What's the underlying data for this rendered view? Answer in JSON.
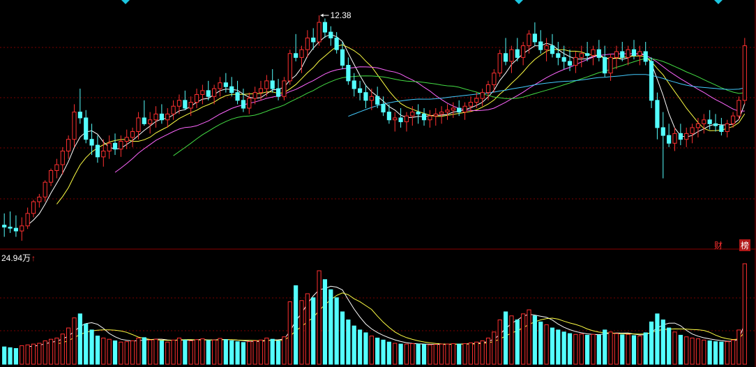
{
  "chart_data": {
    "type": "candlestick",
    "price_panel": {
      "high_marker_label": "12.38",
      "ma_colors": [
        "#ffffff",
        "#ffff44",
        "#ff66ff",
        "#44dd44",
        "#44ccff"
      ],
      "grid": true
    },
    "volume_panel": {
      "max_label": "24.94万",
      "arrow": "↑",
      "ma_colors": [
        "#ffffff",
        "#ffff44"
      ],
      "grid": true
    },
    "tags": {
      "cai": "财",
      "bang": "榜"
    },
    "colors": {
      "up": "#ff3030",
      "down": "#54ffff",
      "grid": "#7a0000",
      "separator": "#8a0000",
      "marker": "#1cc6e0"
    },
    "candles_ohlcv": [
      [
        7.0,
        7.3,
        6.7,
        6.95,
        4.3
      ],
      [
        6.95,
        7.35,
        6.8,
        6.92,
        4.1
      ],
      [
        6.92,
        7.25,
        6.7,
        6.85,
        3.9
      ],
      [
        6.85,
        7.2,
        6.6,
        6.98,
        4.6
      ],
      [
        6.98,
        7.45,
        6.9,
        7.3,
        4.8
      ],
      [
        7.3,
        7.65,
        7.2,
        7.6,
        5.0
      ],
      [
        7.6,
        7.8,
        7.45,
        7.72,
        5.2
      ],
      [
        7.72,
        8.15,
        7.6,
        8.1,
        5.8
      ],
      [
        8.1,
        8.45,
        8.0,
        8.4,
        6.2
      ],
      [
        8.4,
        8.7,
        8.2,
        8.55,
        6.5
      ],
      [
        8.55,
        9.0,
        8.3,
        8.9,
        7.5
      ],
      [
        8.9,
        9.3,
        8.7,
        9.2,
        9.0
      ],
      [
        9.2,
        10.1,
        9.0,
        9.9,
        11.5
      ],
      [
        9.9,
        10.5,
        9.6,
        9.75,
        12.5
      ],
      [
        9.75,
        9.95,
        9.1,
        9.2,
        10.0
      ],
      [
        9.2,
        9.6,
        8.8,
        9.05,
        8.5
      ],
      [
        9.05,
        9.3,
        8.6,
        8.75,
        7.0
      ],
      [
        8.75,
        9.2,
        8.5,
        8.9,
        6.5
      ],
      [
        8.9,
        9.3,
        8.7,
        9.1,
        6.2
      ],
      [
        9.1,
        9.35,
        8.8,
        8.95,
        5.8
      ],
      [
        8.95,
        9.3,
        8.75,
        9.15,
        5.5
      ],
      [
        9.15,
        9.45,
        8.95,
        9.25,
        5.6
      ],
      [
        9.25,
        9.5,
        9.0,
        9.4,
        5.8
      ],
      [
        9.4,
        9.9,
        9.2,
        9.75,
        6.5
      ],
      [
        9.75,
        10.2,
        9.55,
        9.6,
        6.6
      ],
      [
        9.6,
        9.9,
        9.35,
        9.7,
        6.0
      ],
      [
        9.7,
        10.05,
        9.5,
        9.85,
        6.2
      ],
      [
        9.85,
        10.1,
        9.6,
        9.7,
        5.8
      ],
      [
        9.7,
        10.0,
        9.5,
        9.85,
        5.5
      ],
      [
        9.85,
        10.2,
        9.7,
        10.05,
        6.0
      ],
      [
        10.05,
        10.35,
        9.85,
        10.2,
        6.5
      ],
      [
        10.2,
        10.45,
        9.95,
        10.0,
        6.0
      ],
      [
        10.0,
        10.3,
        9.8,
        10.15,
        5.8
      ],
      [
        10.15,
        10.5,
        10.0,
        10.35,
        6.1
      ],
      [
        10.35,
        10.6,
        10.1,
        10.45,
        6.3
      ],
      [
        10.45,
        10.7,
        10.2,
        10.3,
        5.9
      ],
      [
        10.3,
        10.6,
        10.1,
        10.5,
        6.0
      ],
      [
        10.5,
        10.8,
        10.3,
        10.65,
        6.4
      ],
      [
        10.65,
        10.9,
        10.4,
        10.55,
        6.1
      ],
      [
        10.55,
        10.8,
        10.3,
        10.4,
        5.8
      ],
      [
        10.4,
        10.7,
        10.1,
        10.2,
        5.6
      ],
      [
        10.2,
        10.5,
        9.9,
        10.0,
        5.4
      ],
      [
        10.0,
        10.4,
        9.85,
        10.25,
        5.6
      ],
      [
        10.25,
        10.55,
        10.1,
        10.4,
        5.8
      ],
      [
        10.4,
        10.7,
        10.2,
        10.5,
        6.0
      ],
      [
        10.5,
        10.85,
        10.3,
        10.7,
        6.5
      ],
      [
        10.7,
        11.0,
        10.4,
        10.5,
        6.2
      ],
      [
        10.5,
        10.75,
        10.2,
        10.3,
        5.8
      ],
      [
        10.3,
        10.8,
        10.2,
        10.7,
        6.8
      ],
      [
        10.7,
        11.5,
        10.6,
        11.4,
        15.5
      ],
      [
        11.4,
        11.9,
        11.2,
        11.3,
        19.5
      ],
      [
        11.3,
        11.6,
        10.9,
        11.5,
        15.8
      ],
      [
        11.5,
        12.0,
        11.3,
        11.8,
        17.5
      ],
      [
        11.8,
        12.05,
        11.5,
        11.7,
        16.5
      ],
      [
        11.7,
        12.38,
        11.6,
        12.2,
        23.2
      ],
      [
        12.2,
        12.3,
        11.8,
        11.95,
        21.0
      ],
      [
        11.95,
        12.1,
        11.6,
        11.8,
        18.5
      ],
      [
        11.8,
        11.95,
        11.4,
        11.5,
        16.5
      ],
      [
        11.5,
        11.7,
        11.0,
        11.1,
        13.0
      ],
      [
        11.1,
        11.3,
        10.6,
        10.7,
        11.0
      ],
      [
        10.7,
        10.9,
        10.3,
        10.5,
        9.5
      ],
      [
        10.5,
        10.7,
        10.2,
        10.4,
        8.5
      ],
      [
        10.4,
        10.6,
        10.0,
        10.2,
        7.8
      ],
      [
        10.2,
        10.5,
        9.95,
        10.3,
        7.0
      ],
      [
        10.3,
        10.55,
        10.0,
        10.1,
        6.5
      ],
      [
        10.1,
        10.3,
        9.8,
        9.9,
        6.0
      ],
      [
        9.9,
        10.1,
        9.6,
        9.7,
        5.5
      ],
      [
        9.7,
        9.9,
        9.4,
        9.75,
        5.2
      ],
      [
        9.75,
        10.0,
        9.5,
        9.65,
        5.0
      ],
      [
        9.65,
        9.9,
        9.4,
        9.8,
        5.0
      ],
      [
        9.8,
        10.05,
        9.55,
        9.9,
        5.1
      ],
      [
        9.9,
        10.1,
        9.6,
        9.85,
        5.0
      ],
      [
        9.85,
        10.0,
        9.55,
        9.7,
        4.9
      ],
      [
        9.7,
        9.95,
        9.5,
        9.8,
        4.8
      ],
      [
        9.8,
        10.0,
        9.55,
        9.85,
        4.9
      ],
      [
        9.85,
        10.05,
        9.6,
        9.9,
        5.0
      ],
      [
        9.9,
        10.1,
        9.7,
        9.95,
        5.0
      ],
      [
        9.95,
        10.15,
        9.75,
        10.0,
        5.1
      ],
      [
        10.0,
        10.2,
        9.8,
        9.9,
        5.0
      ],
      [
        9.9,
        10.15,
        9.7,
        10.05,
        5.1
      ],
      [
        10.05,
        10.3,
        9.9,
        10.15,
        5.3
      ],
      [
        10.15,
        10.4,
        10.0,
        10.25,
        5.5
      ],
      [
        10.25,
        10.5,
        10.05,
        10.4,
        5.8
      ],
      [
        10.4,
        10.7,
        10.2,
        10.6,
        6.5
      ],
      [
        10.6,
        11.0,
        10.4,
        10.9,
        8.0
      ],
      [
        10.9,
        11.5,
        10.8,
        11.4,
        11.0
      ],
      [
        11.4,
        11.8,
        11.1,
        11.2,
        13.0
      ],
      [
        11.2,
        11.6,
        10.9,
        11.5,
        12.0
      ],
      [
        11.5,
        11.8,
        11.2,
        11.3,
        11.0
      ],
      [
        11.3,
        11.7,
        11.1,
        11.6,
        12.5
      ],
      [
        11.6,
        12.0,
        11.4,
        11.9,
        13.5
      ],
      [
        11.9,
        12.2,
        11.6,
        11.7,
        12.0
      ],
      [
        11.7,
        12.0,
        11.4,
        11.5,
        10.5
      ],
      [
        11.5,
        11.8,
        11.2,
        11.6,
        9.8
      ],
      [
        11.6,
        11.9,
        11.3,
        11.4,
        9.0
      ],
      [
        11.4,
        11.7,
        11.1,
        11.3,
        8.5
      ],
      [
        11.3,
        11.6,
        11.0,
        11.2,
        8.0
      ],
      [
        11.2,
        11.5,
        10.95,
        11.1,
        7.6
      ],
      [
        11.1,
        11.45,
        10.9,
        11.3,
        7.4
      ],
      [
        11.3,
        11.6,
        11.05,
        11.4,
        7.5
      ],
      [
        11.4,
        11.7,
        11.2,
        11.35,
        7.2
      ],
      [
        11.35,
        11.6,
        11.1,
        11.5,
        7.4
      ],
      [
        11.5,
        11.75,
        11.2,
        11.3,
        7.2
      ],
      [
        11.3,
        11.6,
        10.8,
        10.9,
        8.5
      ],
      [
        10.9,
        11.4,
        10.7,
        11.3,
        8.0
      ],
      [
        11.3,
        11.6,
        11.0,
        11.45,
        7.6
      ],
      [
        11.45,
        11.7,
        11.2,
        11.3,
        7.3
      ],
      [
        11.3,
        11.6,
        11.1,
        11.5,
        7.4
      ],
      [
        11.5,
        11.75,
        11.25,
        11.35,
        7.1
      ],
      [
        11.35,
        11.6,
        11.1,
        11.45,
        7.0
      ],
      [
        11.45,
        11.7,
        11.1,
        11.2,
        7.8
      ],
      [
        11.2,
        11.3,
        10.0,
        10.2,
        10.5
      ],
      [
        10.2,
        10.4,
        9.2,
        9.5,
        12.5
      ],
      [
        9.5,
        9.9,
        8.2,
        9.3,
        11.0
      ],
      [
        9.3,
        9.6,
        9.0,
        9.1,
        9.0
      ],
      [
        9.1,
        9.5,
        8.9,
        9.35,
        8.0
      ],
      [
        9.35,
        9.6,
        9.05,
        9.2,
        7.2
      ],
      [
        9.2,
        9.5,
        9.0,
        9.35,
        6.8
      ],
      [
        9.35,
        9.6,
        9.1,
        9.5,
        6.5
      ],
      [
        9.5,
        9.75,
        9.25,
        9.6,
        6.3
      ],
      [
        9.6,
        9.85,
        9.35,
        9.7,
        6.0
      ],
      [
        9.7,
        9.95,
        9.45,
        9.6,
        5.8
      ],
      [
        9.6,
        9.85,
        9.4,
        9.55,
        5.6
      ],
      [
        9.55,
        9.75,
        9.3,
        9.4,
        5.5
      ],
      [
        9.4,
        9.7,
        9.25,
        9.6,
        5.6
      ],
      [
        9.6,
        9.9,
        9.5,
        9.8,
        6.0
      ],
      [
        9.8,
        10.3,
        9.7,
        10.2,
        8.5
      ],
      [
        10.2,
        11.8,
        10.1,
        11.6,
        24.94
      ]
    ]
  }
}
